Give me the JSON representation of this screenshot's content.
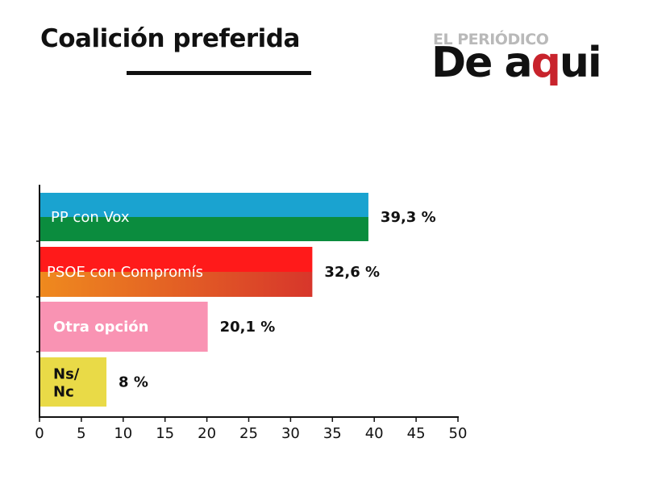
{
  "header": {
    "title": "Coalición preferida"
  },
  "logo": {
    "line1": "EL PERIÓDICO",
    "line2_a": "De a",
    "line2_b": "q",
    "line2_c": "ui"
  },
  "chart_data": {
    "type": "bar",
    "orientation": "horizontal",
    "categories": [
      "PP con Vox",
      "PSOE con Compromís",
      "Otra opción",
      "Ns/ Nc"
    ],
    "values": [
      39.3,
      32.6,
      20.1,
      8
    ],
    "value_labels": [
      "39,3 %",
      "32,6 %",
      "20,1 %",
      "8 %"
    ],
    "xlim": [
      0,
      50
    ],
    "xticks": [
      0,
      5,
      10,
      15,
      20,
      25,
      30,
      35,
      40,
      45,
      50
    ],
    "grid": false,
    "colors": {
      "pp_top": "#1aa3d0",
      "pp_bottom": "#0b8c3e",
      "psoe_top": "#ff1a1a",
      "psoe_bottom_left": "#ef8a1e",
      "psoe_bottom_right": "#d7362b",
      "otra": "#f993b3",
      "nsnc": "#e9da47"
    }
  }
}
